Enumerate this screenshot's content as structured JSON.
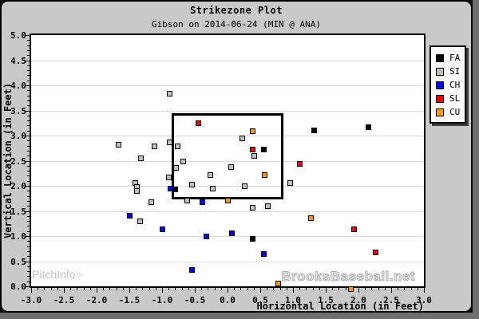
{
  "title": "Strikezone Plot",
  "subtitle": "Gibson on 2014-06-24 (MIN @ ANA)",
  "watermarks": {
    "pitchinfo": "PitchInfo",
    "brooksbaseball": "BrooksBaseball.net"
  },
  "legend": {
    "position": "right-outside",
    "items": [
      {
        "label": "FA",
        "color": "#000000"
      },
      {
        "label": "SI",
        "color": "#c0c0c0"
      },
      {
        "label": "CH",
        "color": "#0000ee"
      },
      {
        "label": "SL",
        "color": "#ee0000"
      },
      {
        "label": "CU",
        "color": "#ff9900"
      }
    ]
  },
  "chart_data": {
    "type": "scatter",
    "title": "Strikezone Plot",
    "subtitle": "Gibson on 2014-06-24 (MIN @ ANA)",
    "xlabel": "Horizontal Location (in Feet)",
    "ylabel": "Vertical Location (in Feet)",
    "xlim": [
      -3.0,
      3.0
    ],
    "ylim": [
      0.0,
      5.0
    ],
    "x_tick_labels": [
      "-3.0",
      "-2.5",
      "-2.0",
      "-1.5",
      "-1.0",
      "-0.5",
      "0.0",
      "0.5",
      "1.0",
      "1.5",
      "2.0",
      "2.5",
      "3.0"
    ],
    "y_tick_labels": [
      "0.0",
      "0.5",
      "1.0",
      "1.5",
      "2.0",
      "2.5",
      "3.0",
      "3.5",
      "4.0",
      "4.5",
      "5.0"
    ],
    "minor_tick_step": 0.1,
    "grid": "horizontal-only",
    "gridline_values": [
      0.5,
      1.0,
      1.5,
      2.0,
      2.5,
      3.0,
      3.5,
      4.0,
      4.5
    ],
    "marker": "square",
    "strike_zone": {
      "x_left": -0.83,
      "x_right": 0.84,
      "y_top": 3.42,
      "y_bottom": 1.76
    },
    "series": [
      {
        "name": "FA",
        "color": "#000000",
        "points": [
          [
            -0.8,
            1.93
          ],
          [
            0.56,
            2.73
          ],
          [
            1.32,
            3.1
          ],
          [
            2.15,
            3.17
          ],
          [
            0.39,
            0.94
          ]
        ]
      },
      {
        "name": "SI",
        "color": "#c0c0c0",
        "points": [
          [
            -0.89,
            3.83
          ],
          [
            -1.66,
            2.81
          ],
          [
            -1.12,
            2.79
          ],
          [
            -0.89,
            2.86
          ],
          [
            -0.76,
            2.79
          ],
          [
            -1.32,
            2.54
          ],
          [
            -0.68,
            2.48
          ],
          [
            -0.79,
            2.35
          ],
          [
            -0.9,
            2.16
          ],
          [
            -1.41,
            2.05
          ],
          [
            -1.38,
            1.97
          ],
          [
            -1.38,
            1.89
          ],
          [
            -1.16,
            1.68
          ],
          [
            -1.33,
            1.3
          ],
          [
            -0.26,
            2.22
          ],
          [
            -0.54,
            2.03
          ],
          [
            -0.23,
            1.95
          ],
          [
            -0.61,
            1.7
          ],
          [
            0.22,
            2.95
          ],
          [
            0.41,
            2.59
          ],
          [
            0.05,
            2.38
          ],
          [
            0.26,
            2.0
          ],
          [
            0.96,
            2.06
          ],
          [
            0.38,
            1.57
          ],
          [
            0.62,
            1.6
          ]
        ]
      },
      {
        "name": "CH",
        "color": "#0000ee",
        "points": [
          [
            -0.87,
            1.95
          ],
          [
            -1.5,
            1.41
          ],
          [
            -0.99,
            1.14
          ],
          [
            -0.38,
            1.67
          ],
          [
            -0.32,
            1.0
          ],
          [
            -0.54,
            0.33
          ],
          [
            0.07,
            1.05
          ],
          [
            0.56,
            0.65
          ]
        ]
      },
      {
        "name": "SL",
        "color": "#ee0000",
        "points": [
          [
            -0.45,
            3.24
          ],
          [
            0.39,
            2.73
          ],
          [
            1.1,
            2.44
          ],
          [
            1.93,
            1.14
          ],
          [
            2.26,
            0.68
          ]
        ]
      },
      {
        "name": "CU",
        "color": "#ff9900",
        "points": [
          [
            0.39,
            3.08
          ],
          [
            0.57,
            2.22
          ],
          [
            0.01,
            1.71
          ],
          [
            1.28,
            1.35
          ],
          [
            0.78,
            0.05
          ],
          [
            1.88,
            -0.06
          ]
        ]
      }
    ],
    "paint_order": [
      "SI",
      "CH",
      "CU",
      "SL",
      "FA"
    ]
  }
}
